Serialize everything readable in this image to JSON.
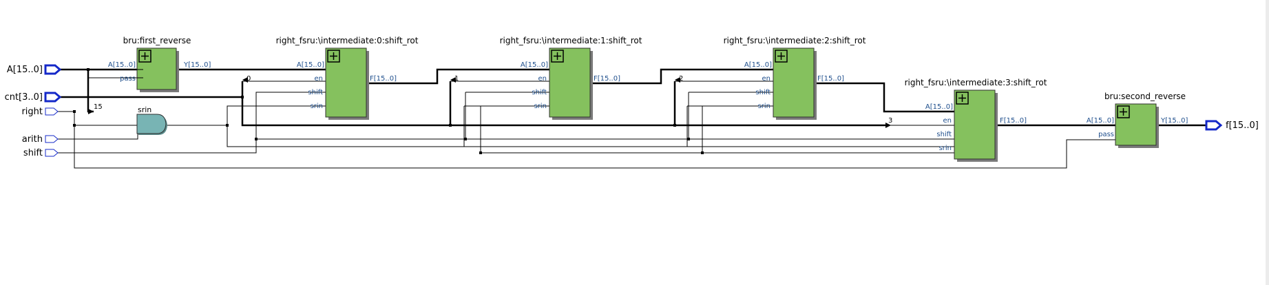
{
  "inputs": {
    "a": "A[15..0]",
    "cnt": "cnt[3..0]",
    "right": "right",
    "arith": "arith",
    "shift": "shift"
  },
  "output": {
    "f": "f[15..0]"
  },
  "first_reverse": {
    "title": "bru:first_reverse",
    "a": "A[15..0]",
    "pass": "pass",
    "y": "Y[15..0]"
  },
  "srin": {
    "title": "srin",
    "bit": "15"
  },
  "stages": [
    {
      "title": "right_fsru:\\intermediate:0:shift_rot",
      "a": "A[15..0]",
      "en": "en",
      "shift": "shift",
      "srin": "srin",
      "f": "F[15..0]",
      "bit": "0"
    },
    {
      "title": "right_fsru:\\intermediate:1:shift_rot",
      "a": "A[15..0]",
      "en": "en",
      "shift": "shift",
      "srin": "srin",
      "f": "F[15..0]",
      "bit": "1"
    },
    {
      "title": "right_fsru:\\intermediate:2:shift_rot",
      "a": "A[15..0]",
      "en": "en",
      "shift": "shift",
      "srin": "srin",
      "f": "F[15..0]",
      "bit": "2"
    },
    {
      "title": "right_fsru:\\intermediate:3:shift_rot",
      "a": "A[15..0]",
      "en": "en",
      "shift": "shift",
      "srin": "srin",
      "f": "F[15..0]",
      "bit": "3"
    }
  ],
  "second_reverse": {
    "title": "bru:second_reverse",
    "a": "A[15..0]",
    "pass": "pass",
    "y": "Y[15..0]"
  }
}
